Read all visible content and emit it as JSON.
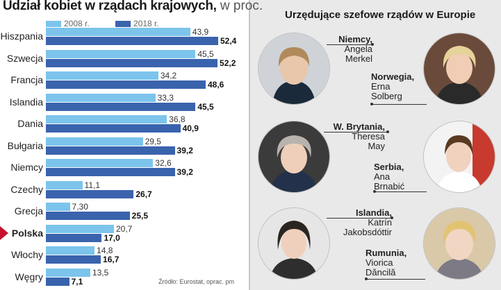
{
  "title": {
    "bold": "Udział kobiet w rządach krajowych,",
    "unit": " w proc."
  },
  "legend": [
    {
      "label": "2008 r.",
      "color": "#7cc4ec"
    },
    {
      "label": "2018 r.",
      "color": "#3a63ad"
    }
  ],
  "highlight_country": "Polska",
  "source": "Źródło: Eurostat, oprac. pm",
  "chart_data": {
    "type": "bar",
    "orientation": "horizontal",
    "title": "Udział kobiet w rządach krajowych, w proc.",
    "categories": [
      "Hiszpania",
      "Szwecja",
      "Francja",
      "Islandia",
      "Dania",
      "Bułgaria",
      "Niemcy",
      "Czechy",
      "Grecja",
      "Polska",
      "Włochy",
      "Węgry"
    ],
    "series": [
      {
        "name": "2008 r.",
        "color": "#7cc4ec",
        "values": [
          43.9,
          45.5,
          34.2,
          33.3,
          36.8,
          29.5,
          32.6,
          11.1,
          7.3,
          20.7,
          14.8,
          13.5
        ],
        "labels": [
          "43,9",
          "45,5",
          "34,2",
          "33,3",
          "36,8",
          "29,5",
          "32,6",
          "11,1",
          "7,30",
          "20,7",
          "14,8",
          "13,5"
        ]
      },
      {
        "name": "2018 r.",
        "color": "#3a63ad",
        "values": [
          52.4,
          52.2,
          48.6,
          45.5,
          40.9,
          39.2,
          39.2,
          26.7,
          25.5,
          17.0,
          16.7,
          7.1
        ],
        "labels": [
          "52,4",
          "52,2",
          "48,6",
          "45,5",
          "40,9",
          "39,2",
          "39,2",
          "26,7",
          "25,5",
          "17,0",
          "16,7",
          "7,1"
        ]
      }
    ],
    "xlim": [
      0,
      52.4
    ]
  },
  "right_panel": {
    "title": "Urzędujące szefowe rządów w Europie",
    "leaders": [
      {
        "country": "Niemcy,",
        "name_lines": [
          "Angela",
          "Merkel"
        ]
      },
      {
        "country": "Norwegia,",
        "name_lines": [
          "Erna",
          "Solberg"
        ]
      },
      {
        "country": "W. Brytania,",
        "name_lines": [
          "Theresa",
          "May"
        ]
      },
      {
        "country": "Serbia,",
        "name_lines": [
          "Ana",
          "Brnabić"
        ]
      },
      {
        "country": "Islandia,",
        "name_lines": [
          "Katrín",
          "Jakobsdóttir"
        ]
      },
      {
        "country": "Rumunia,",
        "name_lines": [
          "Viorica",
          "Dăncilă"
        ]
      }
    ]
  }
}
